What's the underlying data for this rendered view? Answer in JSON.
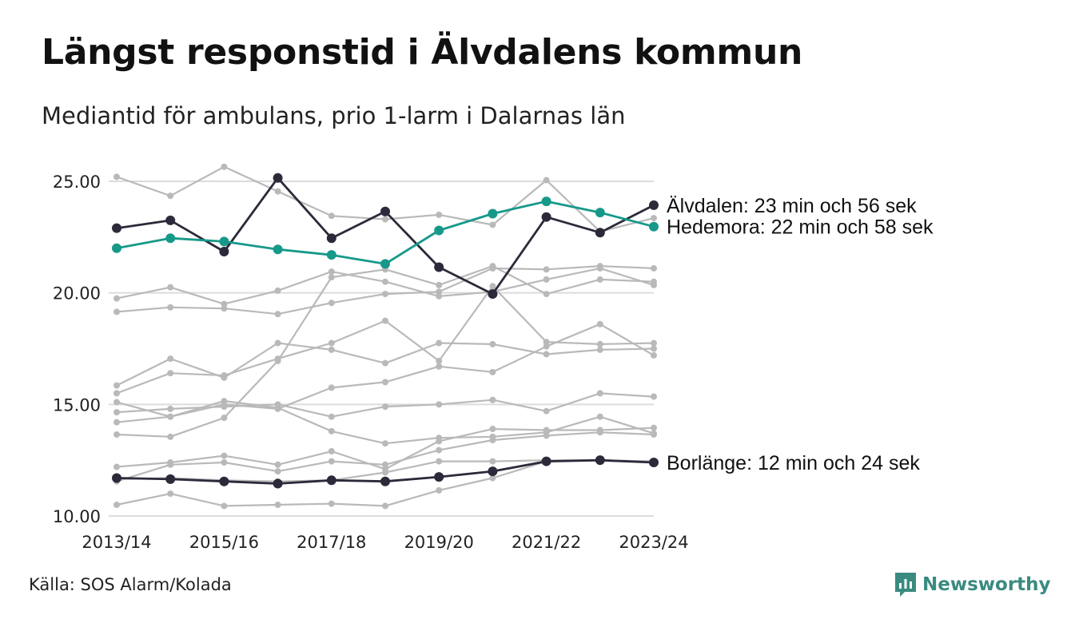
{
  "header": {
    "title": "Längst responstid i Älvdalens kommun",
    "subtitle": "Mediantid för ambulans, prio 1-larm i Dalarnas län"
  },
  "footer": {
    "source": "Källa: SOS Alarm/Kolada",
    "brand": "Newsworthy"
  },
  "colors": {
    "highlight_dark": "#2b2a3a",
    "highlight_teal": "#17998a",
    "background_series": "#b9b9b9",
    "grid": "#dcdcdc",
    "brand": "#3a8a80"
  },
  "chart_data": {
    "type": "line",
    "x": [
      "2013/14",
      "2014/15",
      "2015/16",
      "2016/17",
      "2017/18",
      "2018/19",
      "2019/20",
      "2020/21",
      "2021/22",
      "2022/23",
      "2023/24"
    ],
    "x_tick_labels": [
      "2013/14",
      "2015/16",
      "2017/18",
      "2019/20",
      "2021/22",
      "2023/24"
    ],
    "ylim": [
      10,
      25.5
    ],
    "y_ticks": [
      10,
      15,
      20,
      25
    ],
    "y_tick_labels": [
      "10.00",
      "15.00",
      "20.00",
      "25.00"
    ],
    "grid": "horizontal",
    "highlighted": [
      {
        "values": [
          22.9,
          23.25,
          21.85,
          25.15,
          22.45,
          23.65,
          21.15,
          19.95,
          23.4,
          22.7,
          23.93
        ],
        "color": "#2b2a3a",
        "label": "Älvdalen: 23 min och 56 sek"
      },
      {
        "values": [
          22.0,
          22.45,
          22.3,
          21.95,
          21.7,
          21.3,
          22.8,
          23.55,
          24.1,
          23.6,
          22.97
        ],
        "color": "#17998a",
        "label": "Hedemora: 22 min och 58 sek"
      },
      {
        "values": [
          11.7,
          11.65,
          11.55,
          11.45,
          11.6,
          11.55,
          11.75,
          12.0,
          12.45,
          12.5,
          12.4
        ],
        "color": "#2b2a3a",
        "label": "Borlänge: 12 min och 24 sek"
      }
    ],
    "others": [
      {
        "values": [
          25.2,
          24.35,
          25.65,
          24.55,
          23.45,
          23.3,
          23.5,
          23.05,
          25.05,
          22.75,
          23.35
        ]
      },
      {
        "values": [
          19.75,
          20.25,
          19.5,
          20.1,
          20.95,
          20.5,
          19.85,
          20.05,
          20.6,
          21.1,
          20.35
        ]
      },
      {
        "values": [
          19.15,
          19.35,
          19.3,
          19.05,
          19.55,
          19.95,
          20.05,
          21.1,
          21.05,
          21.2,
          21.1
        ]
      },
      {
        "values": [
          15.85,
          17.05,
          16.2,
          17.75,
          17.45,
          16.85,
          17.75,
          17.7,
          17.25,
          17.45,
          17.5
        ]
      },
      {
        "values": [
          15.5,
          16.4,
          16.3,
          17.05,
          17.75,
          18.75,
          16.95,
          20.3,
          17.8,
          17.7,
          17.75
        ]
      },
      {
        "values": [
          15.1,
          14.45,
          15.0,
          14.8,
          15.75,
          16.0,
          16.7,
          16.45,
          17.6,
          18.6,
          17.2
        ]
      },
      {
        "values": [
          14.65,
          14.8,
          14.9,
          15.0,
          14.45,
          14.9,
          15.0,
          15.2,
          14.7,
          15.5,
          15.35
        ]
      },
      {
        "values": [
          14.2,
          14.45,
          15.15,
          14.85,
          13.8,
          13.25,
          13.5,
          13.55,
          13.75,
          14.45,
          13.7
        ]
      },
      {
        "values": [
          13.65,
          13.55,
          14.4,
          16.95,
          20.7,
          21.05,
          20.35,
          21.2,
          19.95,
          20.6,
          20.5
        ]
      },
      {
        "values": [
          12.2,
          12.4,
          12.7,
          12.3,
          12.9,
          12.1,
          13.35,
          13.9,
          13.85,
          13.85,
          13.95
        ]
      },
      {
        "values": [
          11.55,
          12.3,
          12.4,
          12.0,
          12.45,
          12.3,
          12.95,
          13.4,
          13.6,
          13.75,
          13.65
        ]
      },
      {
        "values": [
          11.65,
          11.7,
          11.6,
          11.55,
          11.6,
          11.95,
          12.45,
          12.45,
          12.5,
          12.5,
          12.45
        ]
      },
      {
        "values": [
          10.5,
          11.0,
          10.45,
          10.5,
          10.55,
          10.45,
          11.15,
          11.7,
          12.45,
          12.5,
          12.45
        ]
      }
    ]
  }
}
